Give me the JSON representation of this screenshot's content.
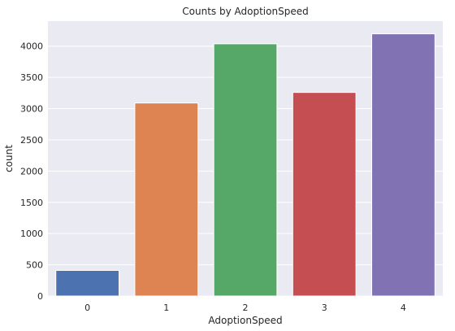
{
  "chart_data": {
    "type": "bar",
    "title": "Counts by AdoptionSpeed",
    "xlabel": "AdoptionSpeed",
    "ylabel": "count",
    "categories": [
      "0",
      "1",
      "2",
      "3",
      "4"
    ],
    "values": [
      410,
      3090,
      4037,
      3259,
      4197
    ],
    "colors": [
      "#4c72b0",
      "#dd8452",
      "#55a868",
      "#c44e52",
      "#8172b3"
    ],
    "ylim": [
      0,
      4400
    ],
    "yticks": [
      0,
      500,
      1000,
      1500,
      2000,
      2500,
      3000,
      3500,
      4000
    ],
    "grid": true,
    "background": "#eaeaf2"
  }
}
